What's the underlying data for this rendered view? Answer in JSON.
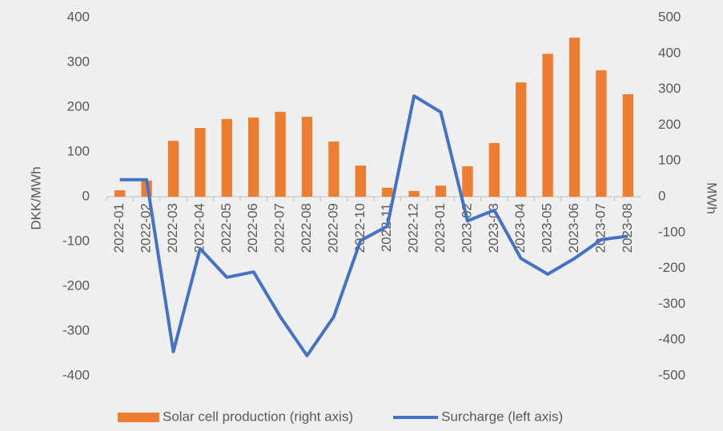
{
  "chart_data": {
    "type": "bar-line",
    "y_label": "DKK/MWh",
    "y2_label": "MWh",
    "categories": [
      "2022-01",
      "2022-02",
      "2022-03",
      "2022-04",
      "2022-05",
      "2022-06",
      "2022-07",
      "2022-08",
      "2022-09",
      "2022-10",
      "2022-11",
      "2022-12",
      "2023-01",
      "2023-02",
      "2023-03",
      "2023-04",
      "2023-05",
      "2023-06",
      "2023-07",
      "2023-08"
    ],
    "series": [
      {
        "name": "Solar cell production (right axis)",
        "type": "bar",
        "axis": "y2",
        "color": "#ed7d31",
        "values": [
          18,
          45,
          156,
          192,
          217,
          221,
          237,
          223,
          154,
          87,
          25,
          16,
          31,
          85,
          150,
          319,
          399,
          444,
          353,
          286
        ]
      },
      {
        "name": "Surcharge (left axis)",
        "type": "line",
        "axis": "y",
        "color": "#4472c4",
        "values": [
          38,
          38,
          -346,
          -116,
          -180,
          -168,
          -268,
          -355,
          -268,
          -98,
          -66,
          225,
          189,
          -54,
          -30,
          -138,
          -173,
          -138,
          -96,
          -88
        ]
      }
    ],
    "ylim": [
      -400,
      400
    ],
    "yticks": [
      -400,
      -300,
      -200,
      -100,
      0,
      100,
      200,
      300,
      400
    ],
    "y2lim": [
      -500,
      500
    ],
    "y2ticks": [
      -500,
      -400,
      -300,
      -200,
      -100,
      0,
      100,
      200,
      300,
      400,
      500
    ],
    "grid": false,
    "legend": "bottom"
  }
}
